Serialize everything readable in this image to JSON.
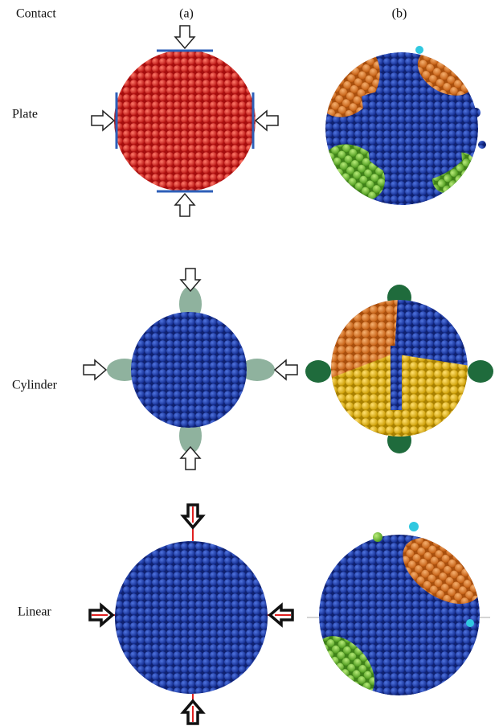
{
  "header": {
    "contact": "Contact",
    "col_a": "(a)",
    "col_b": "(b)"
  },
  "rows": [
    {
      "label": "Plate"
    },
    {
      "label": "Cylinder"
    },
    {
      "label": "Linear"
    }
  ]
}
